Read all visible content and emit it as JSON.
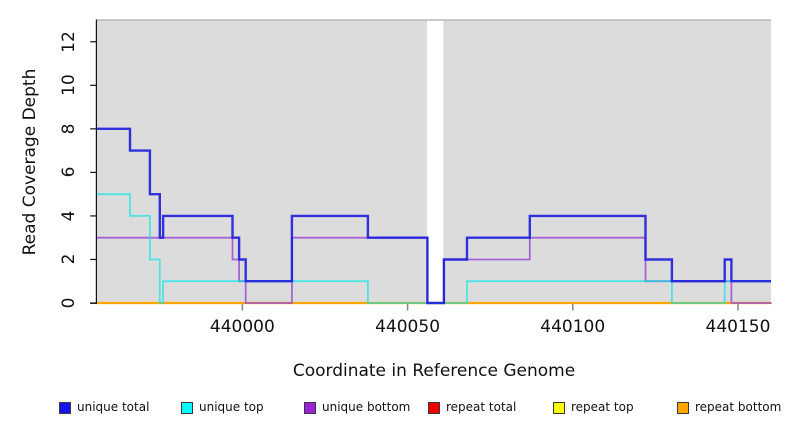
{
  "chart_data": {
    "type": "line",
    "step": true,
    "title": "",
    "xlabel": "Coordinate in Reference Genome",
    "ylabel": "Read Coverage Depth",
    "xlim": [
      439956,
      440160
    ],
    "ylim": [
      0,
      13
    ],
    "xticks": [
      440000,
      440050,
      440100,
      440150
    ],
    "yticks": [
      0,
      2,
      4,
      6,
      8,
      10,
      12
    ],
    "grid": false,
    "plot_background": "#DCDCDC",
    "gap_region": {
      "x_start": 440055.9,
      "x_end": 440060.8,
      "color": "#FFFFFF"
    },
    "legend_position": "bottom",
    "legend": [
      {
        "label": "unique total",
        "swatch": "#1414E6"
      },
      {
        "label": "unique top",
        "swatch": "#00FFFF"
      },
      {
        "label": "unique bottom",
        "swatch": "#9B22D6"
      },
      {
        "label": "repeat total",
        "swatch": "#F00000"
      },
      {
        "label": "repeat top",
        "swatch": "#FFFF00"
      },
      {
        "label": "repeat bottom",
        "swatch": "#FFA500"
      }
    ],
    "series": [
      {
        "name": "repeat total",
        "color": "#E00000",
        "width": 2,
        "opacity": 1,
        "steps": [
          [
            439956,
            0
          ]
        ]
      },
      {
        "name": "repeat top",
        "color": "#FFE900",
        "width": 2,
        "opacity": 1,
        "steps": [
          [
            439956,
            0
          ]
        ]
      },
      {
        "name": "repeat bottom",
        "color": "#FFA500",
        "width": 2.2,
        "opacity": 1,
        "steps": [
          [
            439956,
            0
          ]
        ]
      },
      {
        "name": "unique bottom",
        "color": "#9C4FD6",
        "width": 1.8,
        "opacity": 0.85,
        "steps": [
          [
            439956,
            3
          ],
          [
            439997,
            2
          ],
          [
            439999,
            1
          ],
          [
            440001,
            0
          ],
          [
            440015,
            3
          ],
          [
            440056,
            0
          ],
          [
            440061,
            2
          ],
          [
            440087,
            3
          ],
          [
            440122,
            1
          ],
          [
            440148,
            0
          ]
        ]
      },
      {
        "name": "unique top",
        "color": "#00E6E6",
        "width": 1.8,
        "opacity": 0.65,
        "steps": [
          [
            439956,
            5
          ],
          [
            439966,
            4
          ],
          [
            439972,
            2
          ],
          [
            439975,
            0
          ],
          [
            439976,
            1
          ],
          [
            440038,
            0
          ],
          [
            440068,
            1
          ],
          [
            440130,
            0
          ],
          [
            440146,
            1
          ]
        ]
      },
      {
        "name": "unique total",
        "color": "#2121DC",
        "width": 2.4,
        "opacity": 0.92,
        "steps": [
          [
            439956,
            8
          ],
          [
            439966,
            7
          ],
          [
            439972,
            5
          ],
          [
            439975,
            3
          ],
          [
            439976,
            4
          ],
          [
            439997,
            3
          ],
          [
            439999,
            2
          ],
          [
            440001,
            1
          ],
          [
            440015,
            4
          ],
          [
            440038,
            3
          ],
          [
            440056,
            0
          ],
          [
            440061,
            2
          ],
          [
            440068,
            3
          ],
          [
            440087,
            4
          ],
          [
            440122,
            2
          ],
          [
            440130,
            1
          ],
          [
            440146,
            2
          ],
          [
            440148,
            1
          ]
        ]
      }
    ]
  }
}
